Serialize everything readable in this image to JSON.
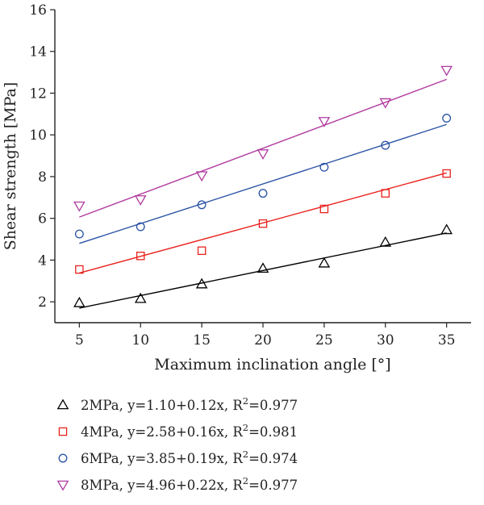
{
  "chart_data": {
    "type": "scatter",
    "title": "",
    "xlabel": "Maximum inclination angle [°]",
    "ylabel": "Shear strength [MPa]",
    "xlim": [
      3,
      37
    ],
    "ylim": [
      1,
      16
    ],
    "xticks": [
      5,
      10,
      15,
      20,
      25,
      30,
      35
    ],
    "yticks": [
      2,
      4,
      6,
      8,
      10,
      12,
      14,
      16
    ],
    "grid": false,
    "legend_position": "below",
    "x": [
      5,
      10,
      15,
      20,
      25,
      30,
      35
    ],
    "series": [
      {
        "name": "2MPa",
        "marker": "triangle-up",
        "color": "#000000",
        "values": [
          1.95,
          2.15,
          2.85,
          3.6,
          3.85,
          4.85,
          5.45
        ],
        "fit": {
          "intercept": 1.1,
          "slope": 0.12
        },
        "legend_prefix": "2MPa, y=1.10+0.12x, R",
        "legend_sup": "2",
        "legend_suffix": "=0.977"
      },
      {
        "name": "4MPa",
        "marker": "square",
        "color": "#e8231e",
        "values": [
          3.55,
          4.2,
          4.45,
          5.75,
          6.45,
          7.2,
          8.15
        ],
        "fit": {
          "intercept": 2.58,
          "slope": 0.16
        },
        "legend_prefix": "4MPa, y=2.58+0.16x, R",
        "legend_sup": "2",
        "legend_suffix": "=0.981"
      },
      {
        "name": "6MPa",
        "marker": "circle",
        "color": "#2a52a5",
        "values": [
          5.25,
          5.6,
          6.65,
          7.2,
          8.45,
          9.5,
          10.8
        ],
        "fit": {
          "intercept": 3.85,
          "slope": 0.19
        },
        "legend_prefix": "6MPa, y=3.85+0.19x, R",
        "legend_sup": "2",
        "legend_suffix": "=0.974"
      },
      {
        "name": "8MPa",
        "marker": "triangle-down",
        "color": "#b03aa0",
        "values": [
          6.6,
          6.9,
          8.05,
          9.1,
          10.65,
          11.55,
          13.1
        ],
        "fit": {
          "intercept": 4.96,
          "slope": 0.22
        },
        "legend_prefix": "8MPa, y=4.96+0.22x, R",
        "legend_sup": "2",
        "legend_suffix": "=0.977"
      }
    ]
  }
}
